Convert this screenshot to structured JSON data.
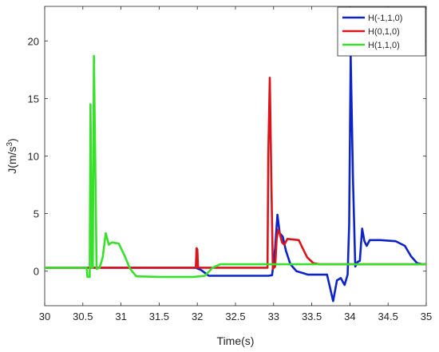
{
  "chart_data": {
    "type": "line",
    "title": "",
    "xlabel": "Time(s)",
    "ylabel": {
      "base": "J(m/s",
      "sup": "3",
      "close": ")"
    },
    "xlim": [
      30,
      35
    ],
    "ylim": [
      -3,
      23
    ],
    "xticks": [
      "30",
      "30.5",
      "31",
      "31.5",
      "32",
      "32.5",
      "33",
      "33.5",
      "34",
      "34.5",
      "35"
    ],
    "yticks": [
      "0",
      "5",
      "10",
      "15",
      "20"
    ],
    "grid": false,
    "legend_position": "top-right",
    "series": [
      {
        "name": "H(-1,1,0)",
        "color": "#0d23c8",
        "points": [
          [
            30,
            0.3
          ],
          [
            31.98,
            0.3
          ],
          [
            32.05,
            0.1
          ],
          [
            32.15,
            -0.4
          ],
          [
            32.93,
            -0.4
          ],
          [
            32.98,
            -0.35
          ],
          [
            33.02,
            2.0
          ],
          [
            33.05,
            4.9
          ],
          [
            33.08,
            3.3
          ],
          [
            33.12,
            3.0
          ],
          [
            33.16,
            1.8
          ],
          [
            33.22,
            0.6
          ],
          [
            33.3,
            0.0
          ],
          [
            33.45,
            -0.3
          ],
          [
            33.7,
            -0.3
          ],
          [
            33.78,
            -2.6
          ],
          [
            33.83,
            -0.8
          ],
          [
            33.88,
            -0.6
          ],
          [
            33.93,
            -1.2
          ],
          [
            33.97,
            -0.3
          ],
          [
            33.99,
            4.0
          ],
          [
            34.01,
            18.7
          ],
          [
            34.04,
            8.0
          ],
          [
            34.07,
            0.4
          ],
          [
            34.1,
            0.8
          ],
          [
            34.13,
            0.9
          ],
          [
            34.16,
            3.7
          ],
          [
            34.19,
            2.6
          ],
          [
            34.22,
            2.2
          ],
          [
            34.26,
            2.7
          ],
          [
            34.4,
            2.7
          ],
          [
            34.6,
            2.6
          ],
          [
            34.72,
            2.2
          ],
          [
            34.8,
            1.3
          ],
          [
            34.88,
            0.7
          ],
          [
            34.95,
            0.6
          ],
          [
            35,
            0.6
          ]
        ]
      },
      {
        "name": "H(0,1,0)",
        "color": "#d9151b",
        "points": [
          [
            30,
            0.3
          ],
          [
            31.98,
            0.3
          ],
          [
            31.99,
            2.0
          ],
          [
            32.0,
            1.9
          ],
          [
            32.01,
            0.3
          ],
          [
            32.92,
            0.3
          ],
          [
            32.93,
            10.0
          ],
          [
            32.95,
            16.8
          ],
          [
            32.97,
            8.0
          ],
          [
            32.99,
            0.2
          ],
          [
            33.02,
            0.4
          ],
          [
            33.04,
            2.8
          ],
          [
            33.06,
            3.6
          ],
          [
            33.08,
            3.3
          ],
          [
            33.11,
            2.5
          ],
          [
            33.14,
            2.3
          ],
          [
            33.18,
            2.8
          ],
          [
            33.33,
            2.7
          ],
          [
            33.38,
            2.0
          ],
          [
            33.44,
            1.2
          ],
          [
            33.52,
            0.7
          ],
          [
            33.6,
            0.6
          ],
          [
            35,
            0.6
          ]
        ]
      },
      {
        "name": "H(1,1,0)",
        "color": "#38e02c",
        "points": [
          [
            30,
            0.3
          ],
          [
            30.55,
            0.3
          ],
          [
            30.56,
            -0.5
          ],
          [
            30.59,
            -0.5
          ],
          [
            30.6,
            14.5
          ],
          [
            30.62,
            0.3
          ],
          [
            30.63,
            0.3
          ],
          [
            30.645,
            18.7
          ],
          [
            30.68,
            0.2
          ],
          [
            30.72,
            0.3
          ],
          [
            30.76,
            1.2
          ],
          [
            30.8,
            3.3
          ],
          [
            30.84,
            2.3
          ],
          [
            30.88,
            2.5
          ],
          [
            30.97,
            2.4
          ],
          [
            31.05,
            1.3
          ],
          [
            31.12,
            0.2
          ],
          [
            31.2,
            -0.45
          ],
          [
            31.5,
            -0.5
          ],
          [
            31.95,
            -0.5
          ],
          [
            32.1,
            -0.4
          ],
          [
            32.2,
            0.3
          ],
          [
            32.3,
            0.6
          ],
          [
            35,
            0.6
          ]
        ]
      }
    ]
  }
}
